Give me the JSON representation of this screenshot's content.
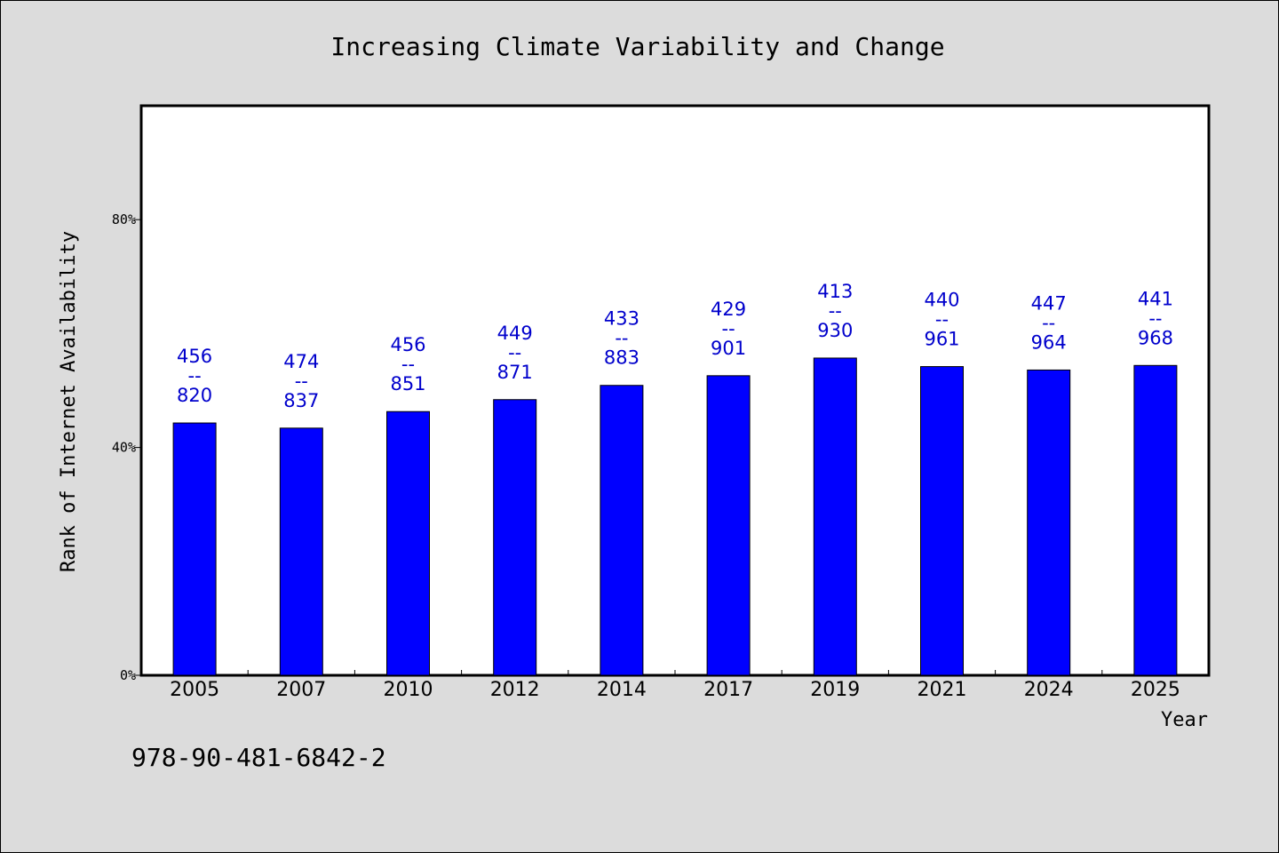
{
  "chart_data": {
    "type": "bar",
    "title": "Increasing Climate Variability and Change",
    "xlabel": "Year",
    "ylabel": "Rank of Internet Availability",
    "categories": [
      "2005",
      "2007",
      "2010",
      "2012",
      "2014",
      "2017",
      "2019",
      "2021",
      "2024",
      "2025"
    ],
    "values": [
      44.3,
      43.4,
      46.3,
      48.4,
      50.9,
      52.6,
      55.7,
      54.2,
      53.6,
      54.4
    ],
    "ylim": [
      0,
      100
    ],
    "yticks": [
      {
        "value": 0,
        "label": "0%"
      },
      {
        "value": 40,
        "label": "40%"
      },
      {
        "value": 80,
        "label": "80%"
      }
    ],
    "bar_labels": [
      {
        "top": "456",
        "sep": "--",
        "bottom": "820"
      },
      {
        "top": "474",
        "sep": "--",
        "bottom": "837"
      },
      {
        "top": "456",
        "sep": "--",
        "bottom": "851"
      },
      {
        "top": "449",
        "sep": "--",
        "bottom": "871"
      },
      {
        "top": "433",
        "sep": "--",
        "bottom": "883"
      },
      {
        "top": "429",
        "sep": "--",
        "bottom": "901"
      },
      {
        "top": "413",
        "sep": "--",
        "bottom": "930"
      },
      {
        "top": "440",
        "sep": "--",
        "bottom": "961"
      },
      {
        "top": "447",
        "sep": "--",
        "bottom": "964"
      },
      {
        "top": "441",
        "sep": "--",
        "bottom": "968"
      }
    ],
    "grid": false,
    "legend": "none",
    "colors": {
      "bar": "#0000ff",
      "label": "#0000cc",
      "plot_bg": "#ffffff",
      "page_bg": "#dcdcdc"
    }
  },
  "footnote": "978-90-481-6842-2"
}
